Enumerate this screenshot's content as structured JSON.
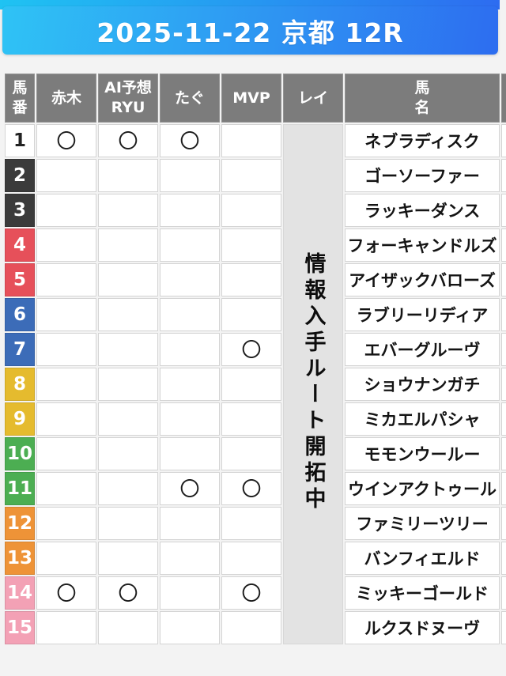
{
  "banner": {
    "title": "2025-11-22 京都 12R"
  },
  "colors": {
    "banner_gradient_left": "#2fc3f5",
    "banner_gradient_right": "#2d6df0",
    "header_bg": "#7c7c7c",
    "rei_overlay_bg": "#e3e3e3",
    "frame_white": "#ffffff",
    "frame_black": "#3b3b3b",
    "frame_red": "#e6505a",
    "frame_blue": "#3c6cb8",
    "frame_yellow": "#e5bb2e",
    "frame_green": "#4cae52",
    "frame_orange": "#ee9337",
    "frame_pink": "#f3a1b5"
  },
  "table": {
    "columns": [
      {
        "id": "umaban",
        "lines": [
          "馬",
          "番"
        ]
      },
      {
        "id": "akagi",
        "lines": [
          "赤木"
        ]
      },
      {
        "id": "ai-yosou-ryu",
        "lines": [
          "AI予想",
          "RYU"
        ]
      },
      {
        "id": "tagu",
        "lines": [
          "たぐ"
        ]
      },
      {
        "id": "mvp",
        "lines": [
          "MVP"
        ]
      },
      {
        "id": "rei",
        "lines": [
          "レイ"
        ]
      },
      {
        "id": "umamei",
        "lines": [
          "馬",
          "名"
        ]
      }
    ],
    "mark_symbol": "〇",
    "rei_overlay_text": "情報入手ルート開拓中",
    "rows": [
      {
        "num": "1",
        "frame": "white",
        "marks": [
          "〇",
          "〇",
          "〇",
          ""
        ],
        "name": "ネブラディスク"
      },
      {
        "num": "2",
        "frame": "black",
        "marks": [
          "",
          "",
          "",
          ""
        ],
        "name": "ゴーソーファー"
      },
      {
        "num": "3",
        "frame": "black",
        "marks": [
          "",
          "",
          "",
          ""
        ],
        "name": "ラッキーダンス"
      },
      {
        "num": "4",
        "frame": "red",
        "marks": [
          "",
          "",
          "",
          ""
        ],
        "name": "フォーキャンドルズ"
      },
      {
        "num": "5",
        "frame": "red",
        "marks": [
          "",
          "",
          "",
          ""
        ],
        "name": "アイザックバローズ"
      },
      {
        "num": "6",
        "frame": "blue",
        "marks": [
          "",
          "",
          "",
          ""
        ],
        "name": "ラブリーリディア"
      },
      {
        "num": "7",
        "frame": "blue",
        "marks": [
          "",
          "",
          "",
          "〇"
        ],
        "name": "エバーグルーヴ"
      },
      {
        "num": "8",
        "frame": "yellow",
        "marks": [
          "",
          "",
          "",
          ""
        ],
        "name": "ショウナンガチ"
      },
      {
        "num": "9",
        "frame": "yellow",
        "marks": [
          "",
          "",
          "",
          ""
        ],
        "name": "ミカエルパシャ"
      },
      {
        "num": "10",
        "frame": "green",
        "marks": [
          "",
          "",
          "",
          ""
        ],
        "name": "モモンウールー"
      },
      {
        "num": "11",
        "frame": "green",
        "marks": [
          "",
          "",
          "〇",
          "〇"
        ],
        "name": "ウインアクトゥール"
      },
      {
        "num": "12",
        "frame": "orange",
        "marks": [
          "",
          "",
          "",
          ""
        ],
        "name": "ファミリーツリー"
      },
      {
        "num": "13",
        "frame": "orange",
        "marks": [
          "",
          "",
          "",
          ""
        ],
        "name": "バンフィエルド"
      },
      {
        "num": "14",
        "frame": "pink",
        "marks": [
          "〇",
          "〇",
          "",
          "〇"
        ],
        "name": "ミッキーゴールド"
      },
      {
        "num": "15",
        "frame": "pink",
        "marks": [
          "",
          "",
          "",
          ""
        ],
        "name": "ルクスドヌーヴ"
      }
    ]
  }
}
